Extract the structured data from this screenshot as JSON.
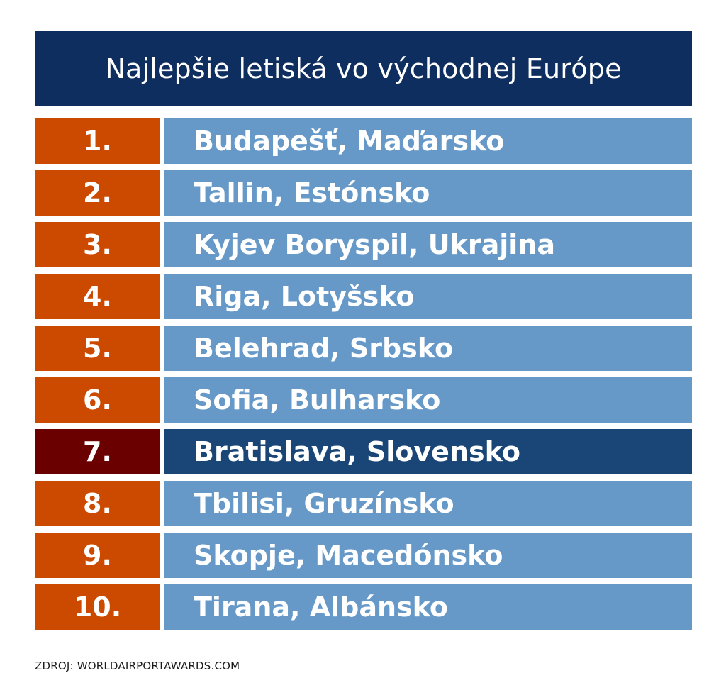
{
  "title": "Najlepšie letiská vo východnej Európe",
  "source": "ZDROJ: WORLDAIRPORTAWARDS.COM",
  "colors": {
    "header_bg": "#0d2e5e",
    "rank_bg": "#cc4a00",
    "name_bg": "#6699c8",
    "highlight_rank_bg": "#6a0000",
    "highlight_name_bg": "#1a4677"
  },
  "chart_data": {
    "type": "table",
    "title": "Najlepšie letiská vo východnej Európe",
    "columns": [
      "rank",
      "airport"
    ],
    "rows": [
      {
        "rank": "1.",
        "airport": "Budapešť, Maďarsko",
        "highlight": false
      },
      {
        "rank": "2.",
        "airport": "Tallin, Estónsko",
        "highlight": false
      },
      {
        "rank": "3.",
        "airport": "Kyjev Boryspil, Ukrajina",
        "highlight": false
      },
      {
        "rank": "4.",
        "airport": "Riga, Lotyšsko",
        "highlight": false
      },
      {
        "rank": "5.",
        "airport": "Belehrad, Srbsko",
        "highlight": false
      },
      {
        "rank": "6.",
        "airport": "Sofia, Bulharsko",
        "highlight": false
      },
      {
        "rank": "7.",
        "airport": "Bratislava, Slovensko",
        "highlight": true
      },
      {
        "rank": "8.",
        "airport": "Tbilisi, Gruzínsko",
        "highlight": false
      },
      {
        "rank": "9.",
        "airport": "Skopje, Macedónsko",
        "highlight": false
      },
      {
        "rank": "10.",
        "airport": "Tirana, Albánsko",
        "highlight": false
      }
    ]
  }
}
